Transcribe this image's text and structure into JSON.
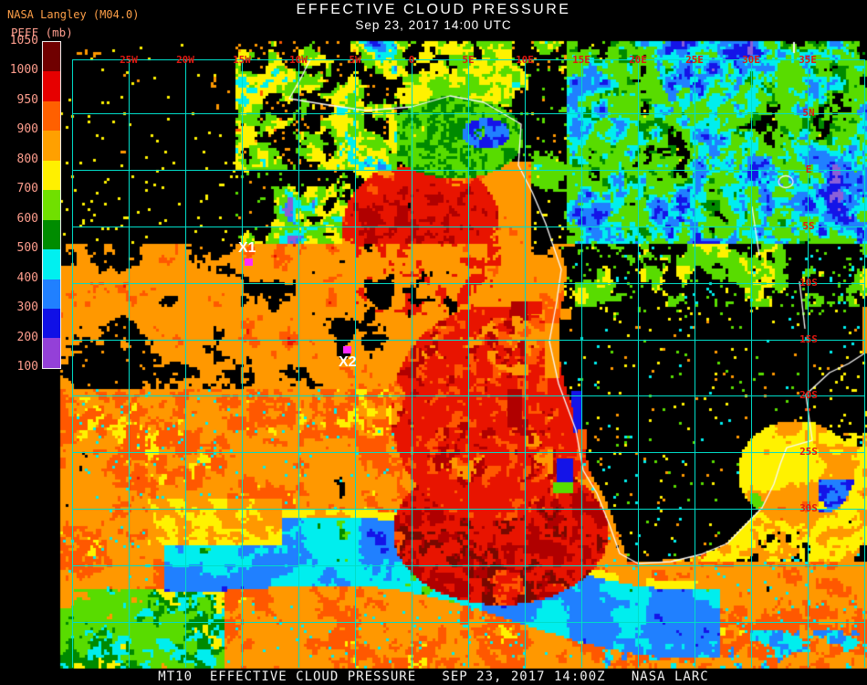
{
  "header": {
    "title": "EFFECTIVE CLOUD PRESSURE",
    "subtitle": "Sep 23, 2017 14:00 UTC",
    "credit": "NASA Langley (M04.0)"
  },
  "colorbar": {
    "label": "PEFF (mb)",
    "ticks": [
      "1050",
      "1000",
      "950",
      "900",
      "800",
      "700",
      "600",
      "500",
      "400",
      "300",
      "200",
      "100"
    ],
    "segments": [
      {
        "range": "1050-1000",
        "color": "#700000"
      },
      {
        "range": "1000-950",
        "color": "#E60000"
      },
      {
        "range": "950-900",
        "color": "#FF6000"
      },
      {
        "range": "900-800",
        "color": "#FFA000"
      },
      {
        "range": "800-700",
        "color": "#FFF000"
      },
      {
        "range": "700-600",
        "color": "#70E000"
      },
      {
        "range": "600-500",
        "color": "#008C00"
      },
      {
        "range": "500-400",
        "color": "#00F0F0"
      },
      {
        "range": "400-300",
        "color": "#2080FF"
      },
      {
        "range": "300-200",
        "color": "#1010E6"
      },
      {
        "range": "200-100",
        "color": "#9440D8"
      }
    ]
  },
  "map": {
    "lon_labels": [
      "25W",
      "20W",
      "15W",
      "10W",
      "5W",
      "0",
      "5E",
      "10E",
      "15E",
      "20E",
      "25E",
      "30E",
      "35E"
    ],
    "lat_labels": [
      "5N",
      "E",
      "5S",
      "10S",
      "15S",
      "20S",
      "25S",
      "30S"
    ],
    "markers": [
      {
        "label": "X1",
        "sx": 268,
        "sy": 283,
        "label_pos": "above"
      },
      {
        "label": "X2",
        "sx": 376,
        "sy": 379,
        "label_pos": "below"
      }
    ]
  },
  "footer": {
    "text": "MT10  EFFECTIVE CLOUD PRESSURE   SEP 23, 2017 14:00Z   NASA LARC"
  },
  "colors": {
    "grid": "#00DCC8",
    "geo_label": "#E01810",
    "coast": "#F8F8F8",
    "marker": "#FF2BFF",
    "palette": {
      "maroon": "#780800",
      "darkred": "#B00000",
      "red": "#E81400",
      "orangered": "#FF5800",
      "orange": "#FF9800",
      "yellow": "#FFF200",
      "bgreen": "#58DC00",
      "dgreen": "#008A00",
      "cyan": "#00EEEE",
      "dodger": "#2080FF",
      "blue": "#1414E8",
      "purple": "#8A5FD8"
    }
  }
}
